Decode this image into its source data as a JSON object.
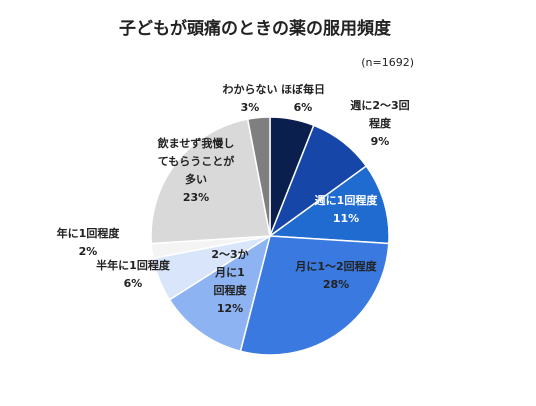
{
  "chart_data": {
    "type": "pie",
    "title": "子どもが頭痛のときの薬の服用頻度",
    "note": "(n=1692)",
    "slices": [
      {
        "label_lines": [
          "ほぼ毎日"
        ],
        "value": 6,
        "percent_text": "6%",
        "color": "#0a1f4d",
        "label_color": "#222222"
      },
      {
        "label_lines": [
          "週に2〜3回",
          "程度"
        ],
        "value": 9,
        "percent_text": "9%",
        "color": "#1546a8",
        "label_color": "#222222"
      },
      {
        "label_lines": [
          "週に1回程度"
        ],
        "value": 11,
        "percent_text": "11%",
        "color": "#1f6bd0",
        "label_color": "#ffffff"
      },
      {
        "label_lines": [
          "月に1〜2回程度"
        ],
        "value": 28,
        "percent_text": "28%",
        "color": "#3a7ae0",
        "label_color": "#222222"
      },
      {
        "label_lines": [
          "2〜3か",
          "月に1",
          "回程度"
        ],
        "value": 12,
        "percent_text": "12%",
        "color": "#8eb3f3",
        "label_color": "#222222"
      },
      {
        "label_lines": [
          "半年に1回程度"
        ],
        "value": 6,
        "percent_text": "6%",
        "color": "#d8e5fb",
        "label_color": "#222222"
      },
      {
        "label_lines": [
          "年に1回程度"
        ],
        "value": 2,
        "percent_text": "2%",
        "color": "#f4f4f4",
        "label_color": "#222222"
      },
      {
        "label_lines": [
          "飲ませず我慢し",
          "てもらうことが",
          "多い"
        ],
        "value": 23,
        "percent_text": "23%",
        "color": "#d9d9d9",
        "label_color": "#222222"
      },
      {
        "label_lines": [
          "わからない"
        ],
        "value": 3,
        "percent_text": "3%",
        "color": "#7f7f7f",
        "label_color": "#222222"
      }
    ]
  }
}
